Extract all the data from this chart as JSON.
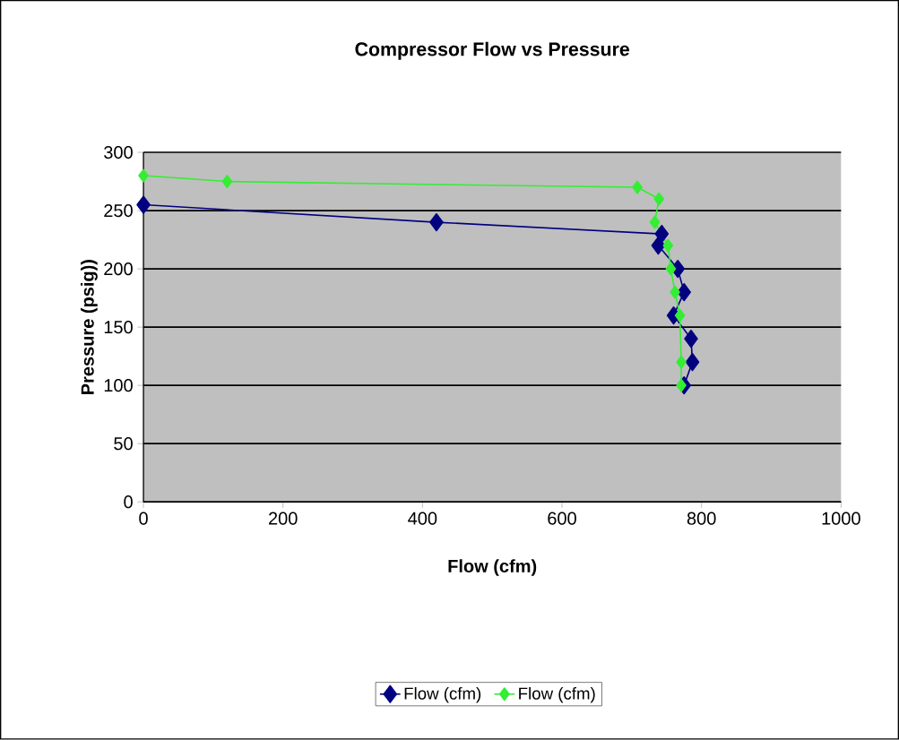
{
  "chart_data": {
    "type": "line",
    "title": "Compressor Flow vs Pressure",
    "xlabel": "Flow (cfm)",
    "ylabel": "Pressure (psig))",
    "series": [
      {
        "name": "Flow (cfm)",
        "color": "#000080",
        "x": [
          0,
          420,
          743,
          738,
          766,
          775,
          760,
          785,
          787,
          775
        ],
        "values": [
          255,
          240,
          230,
          220,
          200,
          180,
          160,
          140,
          120,
          100
        ]
      },
      {
        "name": "Flow (cfm)",
        "color": "#33ee33",
        "x": [
          0,
          120,
          708,
          739,
          733,
          752,
          756,
          762,
          769,
          771,
          771
        ],
        "values": [
          280,
          275,
          270,
          260,
          240,
          220,
          200,
          180,
          160,
          120,
          100
        ]
      }
    ],
    "xlim": [
      0,
      1000
    ],
    "ylim": [
      0,
      300
    ],
    "xticks": [
      0,
      200,
      400,
      600,
      800,
      1000
    ],
    "yticks": [
      0,
      50,
      100,
      150,
      200,
      250,
      300
    ],
    "grid": "y",
    "legend": "bottom",
    "marker": "diamond",
    "line_style": "solid"
  }
}
